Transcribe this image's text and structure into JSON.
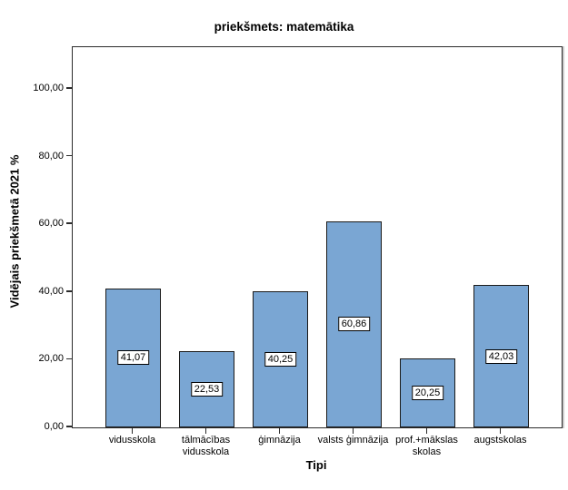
{
  "chart_data": {
    "type": "bar",
    "title": "priekšmets: matemātika",
    "xlabel": "Tipi",
    "ylabel": "Vidējais priekšmetā 2021 %",
    "categories": [
      "vidusskola",
      "tālmācības vidusskola",
      "ģimnāzija",
      "valsts ģimnāzija",
      "prof.+mākslas skolas",
      "augstskolas"
    ],
    "category_lines": [
      [
        "vidusskola"
      ],
      [
        "tālmācības",
        "vidusskola"
      ],
      [
        "ģimnāzija"
      ],
      [
        "valsts ģimnāzija"
      ],
      [
        "prof.+mākslas",
        "skolas"
      ],
      [
        "augstskolas"
      ]
    ],
    "values": [
      41.07,
      22.53,
      40.25,
      60.86,
      20.25,
      42.03
    ],
    "value_labels": [
      "41,07",
      "22,53",
      "40,25",
      "60,86",
      "20,25",
      "42,03"
    ],
    "y_tick_values": [
      0,
      20,
      40,
      60,
      80,
      100
    ],
    "y_tick_labels": [
      "0,00",
      "20,00",
      "40,00",
      "60,00",
      "80,00",
      "100,00"
    ],
    "ylim": [
      0,
      112.3
    ],
    "grid": false,
    "legend": "none",
    "bar_fill_color": "#7AA6D3",
    "bar_border_color": "#1a1a1a",
    "frame_color": "#2b2b2b"
  }
}
